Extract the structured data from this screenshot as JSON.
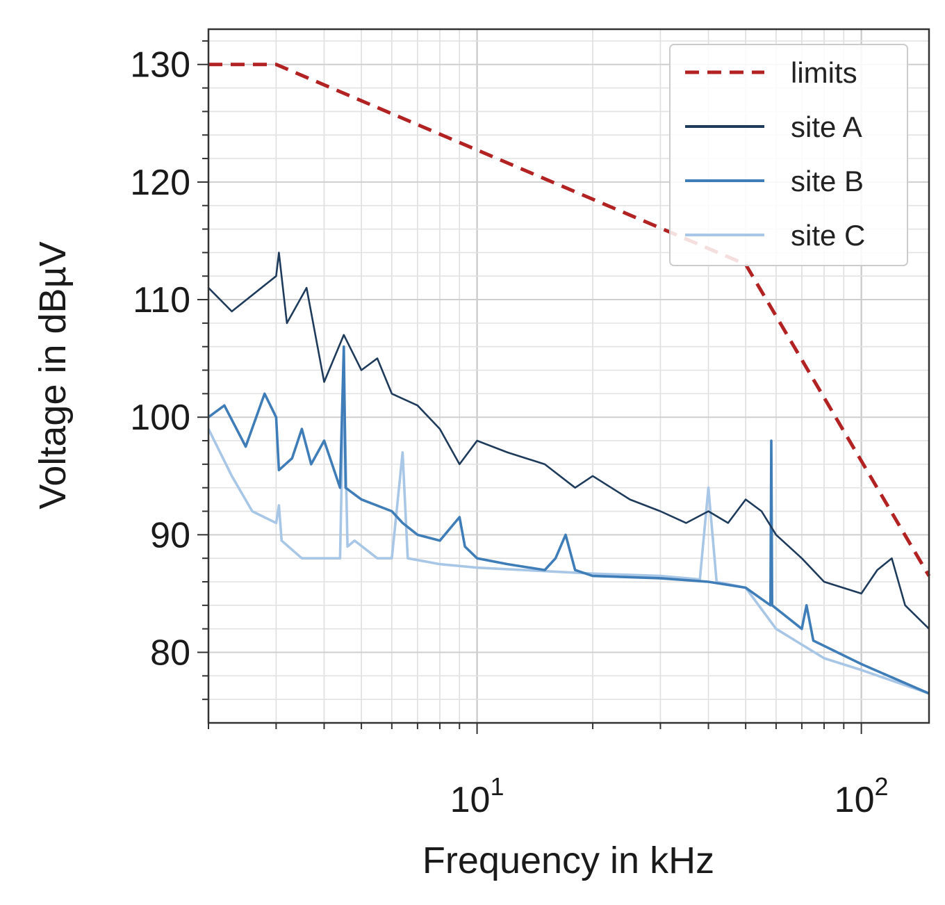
{
  "chart_data": {
    "type": "line",
    "xscale": "log",
    "xlim": [
      2,
      150
    ],
    "ylim": [
      74,
      133
    ],
    "xlabel": "Frequency in kHz",
    "ylabel": "Voltage in dBµV",
    "grid": true,
    "legend_position": "top-right",
    "y_ticks": [
      80,
      90,
      100,
      110,
      120,
      130
    ],
    "y_tick_labels": [
      "80",
      "90",
      "100",
      "110",
      "120",
      "130"
    ],
    "x_ticks": [
      {
        "value": 10,
        "base": "10",
        "exp": "1"
      },
      {
        "value": 100,
        "base": "10",
        "exp": "2"
      }
    ],
    "series": [
      {
        "name": "limits",
        "color": "#b22222",
        "style": "dashed",
        "points": [
          [
            2,
            130
          ],
          [
            3,
            130
          ],
          [
            50,
            113
          ],
          [
            150,
            86.5
          ]
        ]
      },
      {
        "name": "site A",
        "color": "#1f3b5c",
        "style": "solid",
        "points": [
          [
            2,
            111
          ],
          [
            2.3,
            109
          ],
          [
            3,
            112
          ],
          [
            3.05,
            114
          ],
          [
            3.2,
            108
          ],
          [
            3.6,
            111
          ],
          [
            4,
            103
          ],
          [
            4.5,
            107
          ],
          [
            5,
            104
          ],
          [
            5.5,
            105
          ],
          [
            6,
            102
          ],
          [
            7,
            101
          ],
          [
            8,
            99
          ],
          [
            9,
            96
          ],
          [
            10,
            98
          ],
          [
            12,
            97
          ],
          [
            15,
            96
          ],
          [
            18,
            94
          ],
          [
            20,
            95
          ],
          [
            25,
            93
          ],
          [
            30,
            92
          ],
          [
            35,
            91
          ],
          [
            40,
            92
          ],
          [
            45,
            91
          ],
          [
            50,
            93
          ],
          [
            55,
            92
          ],
          [
            60,
            90
          ],
          [
            70,
            88
          ],
          [
            80,
            86
          ],
          [
            100,
            85
          ],
          [
            110,
            87
          ],
          [
            120,
            88
          ],
          [
            130,
            84
          ],
          [
            150,
            82
          ]
        ]
      },
      {
        "name": "site B",
        "color": "#3f7db8",
        "style": "solid",
        "points": [
          [
            2,
            100
          ],
          [
            2.2,
            101
          ],
          [
            2.5,
            97.5
          ],
          [
            2.8,
            102
          ],
          [
            3,
            100
          ],
          [
            3.05,
            95.5
          ],
          [
            3.3,
            96.5
          ],
          [
            3.5,
            99
          ],
          [
            3.7,
            96
          ],
          [
            4,
            98
          ],
          [
            4.4,
            94
          ],
          [
            4.5,
            106
          ],
          [
            4.55,
            94
          ],
          [
            5,
            93
          ],
          [
            6,
            92
          ],
          [
            6.4,
            91
          ],
          [
            7,
            90
          ],
          [
            8,
            89.5
          ],
          [
            9,
            91.5
          ],
          [
            9.3,
            89
          ],
          [
            10,
            88
          ],
          [
            12,
            87.5
          ],
          [
            15,
            87
          ],
          [
            16,
            88
          ],
          [
            17,
            90
          ],
          [
            18,
            87
          ],
          [
            20,
            86.5
          ],
          [
            30,
            86.3
          ],
          [
            40,
            86
          ],
          [
            50,
            85.5
          ],
          [
            58,
            84
          ],
          [
            58.3,
            98
          ],
          [
            58.6,
            84
          ],
          [
            70,
            82
          ],
          [
            72,
            84
          ],
          [
            75,
            81
          ],
          [
            100,
            79
          ],
          [
            150,
            76.5
          ]
        ]
      },
      {
        "name": "site C",
        "color": "#a8c6e6",
        "style": "solid",
        "points": [
          [
            2,
            99
          ],
          [
            2.3,
            95
          ],
          [
            2.6,
            92
          ],
          [
            3,
            91
          ],
          [
            3.05,
            92.5
          ],
          [
            3.1,
            89.5
          ],
          [
            3.5,
            88
          ],
          [
            4.4,
            88
          ],
          [
            4.5,
            104
          ],
          [
            4.6,
            89
          ],
          [
            4.8,
            89.5
          ],
          [
            5.5,
            88
          ],
          [
            6,
            88
          ],
          [
            6.4,
            97
          ],
          [
            6.6,
            88
          ],
          [
            8,
            87.5
          ],
          [
            10,
            87.2
          ],
          [
            20,
            86.7
          ],
          [
            30,
            86.5
          ],
          [
            38,
            86.2
          ],
          [
            40,
            94
          ],
          [
            42,
            86
          ],
          [
            50,
            85.5
          ],
          [
            60,
            82
          ],
          [
            80,
            79.5
          ],
          [
            100,
            78.5
          ],
          [
            150,
            76.5
          ]
        ]
      }
    ]
  }
}
